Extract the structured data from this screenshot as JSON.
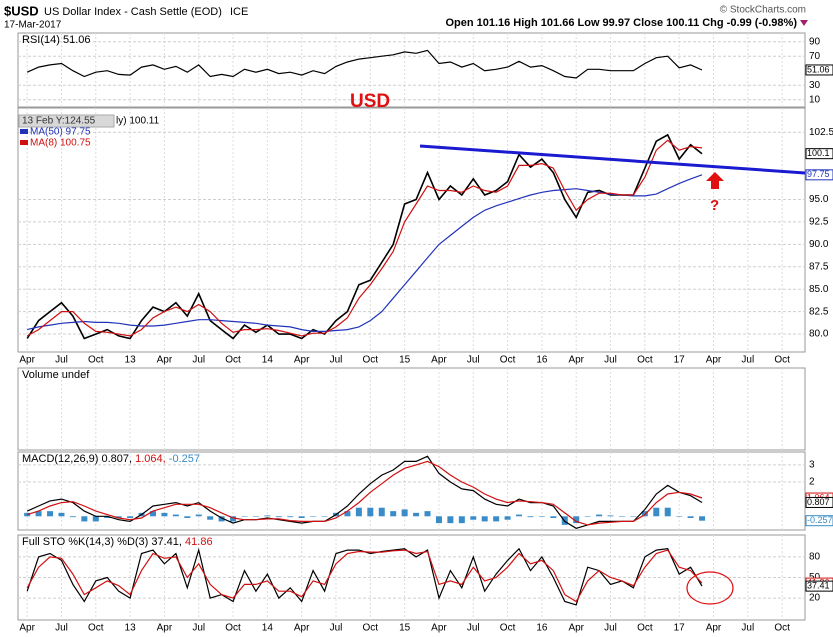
{
  "header": {
    "title": "$USD",
    "subtitle": "US Dollar Index - Cash Settle (EOD)",
    "exchange": "ICE",
    "date": "17-Mar-2017",
    "source": "© StockCharts.com",
    "quote": "Open 101.16  High 101.66  Low 99.97  Close 100.11  Chg -0.99 (-0.98%)"
  },
  "annotations": {
    "label": "USD",
    "question": "?"
  },
  "chart_data": [
    {
      "type": "line",
      "legend": [
        {
          "text": "RSI(14) 51.06",
          "color": "#000000"
        }
      ],
      "ylim": [
        0,
        102
      ],
      "yticks": [
        90,
        70,
        30,
        10
      ],
      "last_labels": [
        {
          "value": 51.06,
          "label": "51.06",
          "color": "#000000"
        }
      ],
      "series": [
        {
          "color": "#000000",
          "values": [
            48,
            55,
            58,
            60,
            50,
            42,
            48,
            50,
            45,
            44,
            55,
            58,
            52,
            56,
            48,
            58,
            42,
            45,
            42,
            52,
            48,
            52,
            46,
            48,
            44,
            50,
            46,
            56,
            62,
            66,
            68,
            70,
            72,
            76,
            74,
            78,
            60,
            62,
            55,
            60,
            50,
            52,
            55,
            63,
            55,
            57,
            50,
            42,
            40,
            52,
            52,
            50,
            50,
            50,
            60,
            68,
            70,
            54,
            58,
            51.06
          ]
        }
      ]
    },
    {
      "type": "line",
      "tooltip": "13 Feb Y:124.55",
      "legend": [
        {
          "text": "ly) 100.11",
          "color": "#000000"
        },
        {
          "text": "MA(50) 97.75",
          "color": "#2233bb"
        },
        {
          "text": "MA(8) 100.75",
          "color": "#d01010"
        }
      ],
      "ylim": [
        78,
        105.2
      ],
      "yticks": [
        102.5,
        {
          "value": 95,
          "label": "95.0"
        },
        92.5,
        {
          "value": 90,
          "label": "90.0"
        },
        87.5,
        {
          "value": 85,
          "label": "85.0"
        },
        82.5,
        {
          "value": 80,
          "label": "80.0"
        }
      ],
      "xlim": [
        -0.8,
        68
      ],
      "xticks": [
        {
          "value": 0,
          "label": "Apr"
        },
        {
          "value": 3,
          "label": "Jul"
        },
        {
          "value": 6,
          "label": "Oct"
        },
        {
          "value": 9,
          "label": "13"
        },
        {
          "value": 12,
          "label": "Apr"
        },
        {
          "value": 15,
          "label": "Jul"
        },
        {
          "value": 18,
          "label": "Oct"
        },
        {
          "value": 21,
          "label": "14"
        },
        {
          "value": 24,
          "label": "Apr"
        },
        {
          "value": 27,
          "label": "Jul"
        },
        {
          "value": 30,
          "label": "Oct"
        },
        {
          "value": 33,
          "label": "15"
        },
        {
          "value": 36,
          "label": "Apr"
        },
        {
          "value": 39,
          "label": "Jul"
        },
        {
          "value": 42,
          "label": "Oct"
        },
        {
          "value": 45,
          "label": "16"
        },
        {
          "value": 48,
          "label": "Apr"
        },
        {
          "value": 51,
          "label": "Jul"
        },
        {
          "value": 54,
          "label": "Oct"
        },
        {
          "value": 57,
          "label": "17"
        },
        {
          "value": 60,
          "label": "Apr"
        },
        {
          "value": 63,
          "label": "Jul"
        },
        {
          "value": 66,
          "label": "Oct"
        }
      ],
      "last_labels": [
        {
          "value": 100.11,
          "label": "100.1",
          "color": "#000000"
        },
        {
          "value": 97.75,
          "label": "97.75",
          "color": "#2233bb"
        }
      ],
      "series": [
        {
          "color": "#000000",
          "values": [
            79.5,
            81.5,
            82.5,
            83.5,
            82,
            79.5,
            80,
            80.5,
            79.8,
            79.5,
            81.5,
            83,
            82.5,
            83.5,
            82,
            84.5,
            81.5,
            80.5,
            79.5,
            81,
            80.2,
            81,
            80,
            80,
            79.5,
            80.5,
            80,
            81.5,
            82.5,
            85.5,
            86,
            88,
            90,
            94.5,
            95,
            98,
            95,
            96.5,
            95.5,
            97.3,
            95.5,
            96,
            97,
            100,
            98.6,
            99.5,
            98,
            95,
            93,
            95.8,
            96,
            95.5,
            95.5,
            95.5,
            98.5,
            101.5,
            102.2,
            99.5,
            101.1,
            100.1
          ]
        },
        {
          "color": "#2233bb",
          "values": [
            80.5,
            80.8,
            81,
            81.2,
            81.3,
            81.4,
            81.3,
            81.3,
            81.2,
            81,
            80.9,
            80.9,
            81,
            81.2,
            81.4,
            81.6,
            81.6,
            81.5,
            81.4,
            81.3,
            81.2,
            81,
            80.9,
            80.8,
            80.5,
            80.3,
            80.3,
            80.4,
            80.5,
            80.8,
            81.5,
            82.5,
            84,
            85.5,
            87,
            88.5,
            90,
            91,
            92,
            93,
            93.8,
            94.3,
            94.7,
            95.1,
            95.5,
            95.8,
            96,
            96.1,
            96.2,
            96,
            95.8,
            95.6,
            95.5,
            95.4,
            95.4,
            95.6,
            96.2,
            96.8,
            97.3,
            97.75
          ]
        },
        {
          "color": "#d01010",
          "values": [
            79.8,
            80.5,
            81.5,
            82.5,
            82.5,
            81.2,
            80.3,
            80.2,
            80,
            79.8,
            80.5,
            81.8,
            82.5,
            83,
            82.5,
            83.3,
            82.5,
            81.2,
            80.2,
            80.5,
            80.5,
            80.6,
            80.4,
            80.1,
            79.8,
            80.1,
            80.1,
            80.8,
            81.8,
            84,
            85.5,
            87.3,
            89.2,
            92.5,
            94.5,
            96.5,
            96,
            96,
            95.8,
            96.5,
            96,
            95.8,
            96.5,
            98.8,
            98.8,
            99,
            98.5,
            96,
            93.8,
            95,
            95.7,
            95.7,
            95.5,
            95.5,
            97.5,
            100.5,
            101.6,
            100.5,
            100.9,
            100.75
          ]
        }
      ]
    },
    {
      "type": "line",
      "legend": [
        {
          "text": "Volume undef",
          "color": "#000000"
        }
      ],
      "series": []
    },
    {
      "type": "line",
      "legend": [
        {
          "text": "MACD(12,26,9) 0.807,",
          "color": "#000000"
        },
        {
          "text": "1.064,",
          "color": "#d01010"
        },
        {
          "text": "-0.257",
          "color": "#3a8cc8"
        }
      ],
      "ylim": [
        -0.8,
        3.75
      ],
      "yticks": [
        3,
        2
      ],
      "last_labels": [
        {
          "value": 1.064,
          "label": "1.064",
          "color": "#d01010"
        },
        {
          "value": 0.807,
          "label": "0.807",
          "color": "#000000"
        },
        {
          "value": -0.257,
          "label": "-0.257",
          "color": "#3a8cc8"
        }
      ],
      "series": [
        {
          "type": "bar",
          "color": "#3a8cc8",
          "values": [
            0.2,
            0.3,
            0.3,
            0.2,
            -0.05,
            -0.3,
            -0.3,
            -0.1,
            -0.1,
            -0.1,
            0.2,
            0.3,
            0.2,
            0.1,
            -0.1,
            0.1,
            -0.2,
            -0.3,
            -0.3,
            0,
            0,
            0.05,
            -0.05,
            -0.05,
            -0.1,
            0,
            0,
            0.2,
            0.3,
            0.5,
            0.5,
            0.5,
            0.3,
            0.4,
            0.2,
            0.3,
            -0.4,
            -0.4,
            -0.4,
            -0.2,
            -0.3,
            -0.3,
            -0.2,
            0.1,
            -0.05,
            0,
            -0.1,
            -0.5,
            -0.4,
            0,
            0.1,
            0.05,
            0,
            0,
            0.3,
            0.5,
            0.5,
            0,
            -0.1,
            -0.257
          ]
        },
        {
          "color": "#000000",
          "values": [
            0.3,
            0.6,
            0.9,
            1.0,
            0.8,
            0.3,
            0.0,
            0.0,
            -0.2,
            -0.3,
            0.1,
            0.6,
            0.7,
            0.8,
            0.6,
            0.8,
            0.3,
            -0.1,
            -0.4,
            -0.2,
            -0.2,
            -0.1,
            -0.2,
            -0.3,
            -0.4,
            -0.3,
            -0.3,
            0.1,
            0.6,
            1.3,
            1.9,
            2.4,
            2.7,
            3.2,
            3.2,
            3.5,
            2.5,
            2.0,
            1.6,
            1.5,
            1.0,
            0.7,
            0.6,
            1.0,
            0.8,
            0.8,
            0.6,
            -0.3,
            -0.7,
            -0.5,
            -0.3,
            -0.3,
            -0.3,
            -0.3,
            0.4,
            1.3,
            1.8,
            1.4,
            1.2,
            0.807
          ]
        },
        {
          "color": "#d01010",
          "values": [
            0.1,
            0.3,
            0.6,
            0.8,
            0.85,
            0.6,
            0.3,
            0.1,
            -0.1,
            -0.2,
            -0.1,
            0.3,
            0.5,
            0.7,
            0.7,
            0.7,
            0.5,
            0.2,
            -0.1,
            -0.2,
            -0.2,
            -0.15,
            -0.15,
            -0.25,
            -0.3,
            -0.3,
            -0.3,
            -0.1,
            0.3,
            0.8,
            1.4,
            1.9,
            2.4,
            2.8,
            3.0,
            3.2,
            2.9,
            2.4,
            2.0,
            1.7,
            1.3,
            1.0,
            0.8,
            0.9,
            0.85,
            0.8,
            0.7,
            0.2,
            -0.3,
            -0.5,
            -0.4,
            -0.35,
            -0.3,
            -0.3,
            0.1,
            0.8,
            1.3,
            1.4,
            1.3,
            1.064
          ]
        }
      ]
    },
    {
      "type": "line",
      "legend": [
        {
          "text": "Full STO %K(14,3) %D(3) 37.41,",
          "color": "#000000"
        },
        {
          "text": "41.86",
          "color": "#d01010"
        }
      ],
      "ylim": [
        -12,
        112
      ],
      "yticks": [
        80,
        50,
        20
      ],
      "last_labels": [
        {
          "value": 41.86,
          "label": "41.86",
          "color": "#d01010"
        },
        {
          "value": 37.41,
          "label": "37.41",
          "color": "#000000"
        }
      ],
      "series": [
        {
          "color": "#000000",
          "values": [
            30,
            80,
            85,
            75,
            40,
            15,
            45,
            50,
            30,
            20,
            85,
            90,
            70,
            85,
            35,
            90,
            20,
            25,
            15,
            60,
            30,
            55,
            20,
            35,
            15,
            60,
            30,
            85,
            90,
            90,
            85,
            88,
            90,
            92,
            80,
            90,
            20,
            60,
            35,
            80,
            30,
            55,
            75,
            92,
            60,
            80,
            50,
            15,
            10,
            65,
            60,
            40,
            45,
            35,
            80,
            90,
            92,
            55,
            65,
            37.41
          ]
        },
        {
          "color": "#d01010",
          "values": [
            35,
            65,
            80,
            78,
            55,
            25,
            35,
            45,
            38,
            25,
            60,
            85,
            78,
            80,
            50,
            70,
            40,
            25,
            20,
            40,
            40,
            45,
            30,
            30,
            22,
            45,
            40,
            70,
            85,
            88,
            87,
            87,
            89,
            90,
            85,
            88,
            40,
            45,
            40,
            65,
            45,
            50,
            65,
            85,
            70,
            75,
            60,
            25,
            15,
            45,
            60,
            50,
            45,
            38,
            65,
            85,
            90,
            65,
            60,
            41.86
          ]
        }
      ]
    }
  ]
}
